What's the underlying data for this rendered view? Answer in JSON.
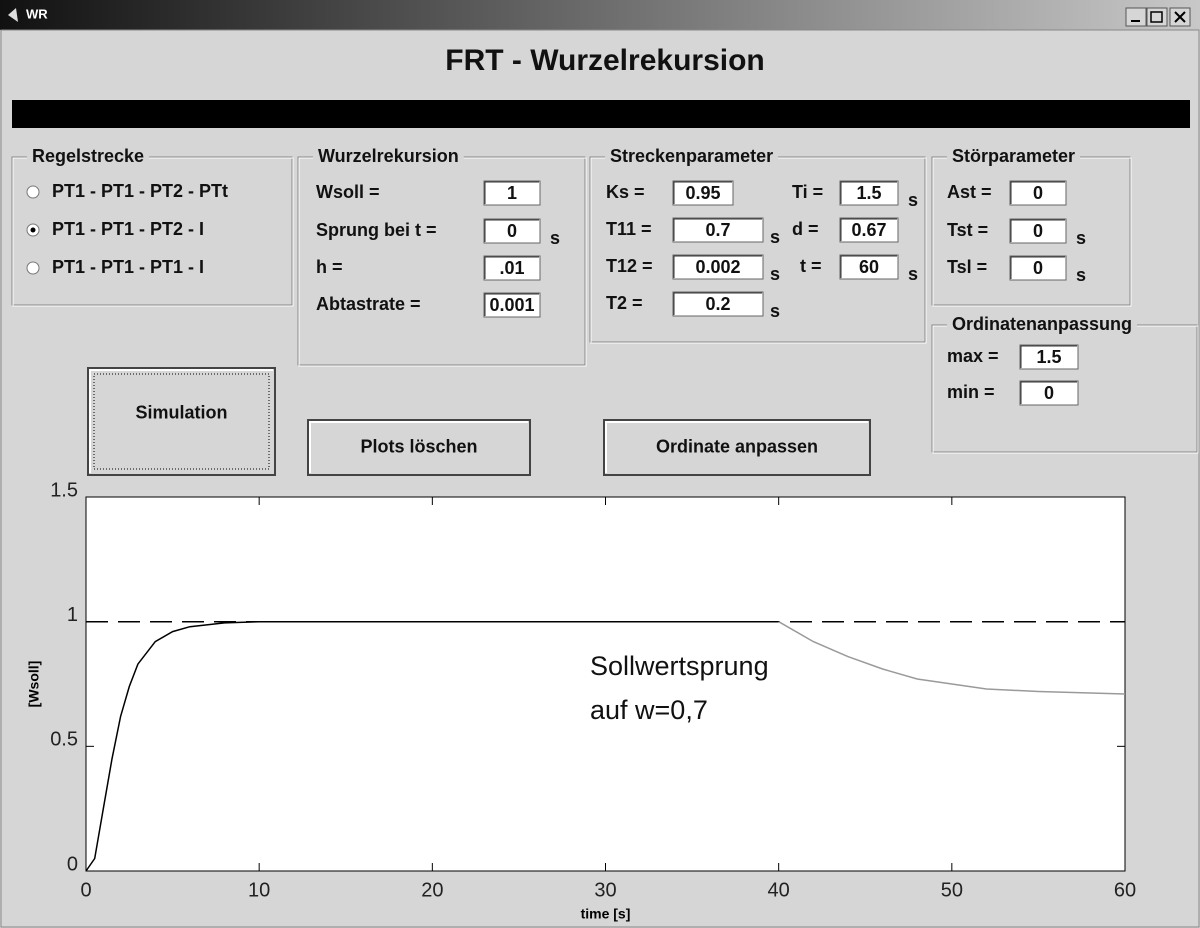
{
  "window": {
    "title": "WR"
  },
  "header": {
    "title": "FRT - Wurzelrekursion"
  },
  "regelstrecke": {
    "title": "Regelstrecke",
    "options": [
      "PT1 - PT1 - PT2 - PTt",
      "PT1 - PT1 - PT2 - I",
      "PT1 - PT1 - PT1 - I"
    ],
    "selected": 1
  },
  "wurzelrekursion": {
    "title": "Wurzelrekursion",
    "fields": [
      {
        "label": "Wsoll =",
        "value": "1"
      },
      {
        "label": "Sprung bei t =",
        "value": "0",
        "unit": "s"
      },
      {
        "label": "h =",
        "value": ".01"
      },
      {
        "label": "Abtastrate =",
        "value": "0.001"
      }
    ]
  },
  "streckenparameter": {
    "title": "Streckenparameter",
    "fields": [
      {
        "label": "Ks =",
        "value": "0.95"
      },
      {
        "label": "Ti =",
        "value": "1.5",
        "unit": "s"
      },
      {
        "label": "T11 =",
        "value": "0.7",
        "unit": "s"
      },
      {
        "label": "d =",
        "value": "0.67"
      },
      {
        "label": "T12 =",
        "value": "0.002",
        "unit": "s"
      },
      {
        "label": "t =",
        "value": "60",
        "unit": "s"
      },
      {
        "label": "T2 =",
        "value": "0.2",
        "unit": "s"
      }
    ]
  },
  "stoerparameter": {
    "title": "Störparameter",
    "fields": [
      {
        "label": "Ast =",
        "value": "0"
      },
      {
        "label": "Tst =",
        "value": "0",
        "unit": "s"
      },
      {
        "label": "Tsl =",
        "value": "0",
        "unit": "s"
      }
    ]
  },
  "ordinatenanpassung": {
    "title": "Ordinatenanpassung",
    "fields": [
      {
        "label": "max =",
        "value": "1.5"
      },
      {
        "label": "min =",
        "value": "0"
      }
    ]
  },
  "buttons": [
    "Simulation",
    "Plots löschen",
    "Ordinate anpassen"
  ],
  "plot": {
    "type": "line",
    "xlabel": "time [s]",
    "ylabel": "[Wsoll]",
    "xlim": [
      0,
      60
    ],
    "ylim": [
      0,
      1.5
    ],
    "xticks": [
      0,
      10,
      20,
      30,
      40,
      50,
      60
    ],
    "yticks": [
      0,
      0.5,
      1,
      1.5
    ],
    "grid": false,
    "annotation": [
      "Sollwertsprung",
      "auf w=0,7"
    ],
    "series": [
      {
        "color": "#000000",
        "dash": true,
        "x": [
          0,
          60
        ],
        "values": [
          1,
          1
        ]
      },
      {
        "color": "#000000",
        "dash": false,
        "x": [
          0,
          0.5,
          1,
          1.5,
          2,
          2.5,
          3,
          4,
          5,
          6,
          8,
          10,
          40
        ],
        "values": [
          0,
          0.05,
          0.25,
          0.45,
          0.62,
          0.74,
          0.83,
          0.92,
          0.96,
          0.98,
          0.995,
          1,
          1
        ]
      },
      {
        "color": "#9a9a9a",
        "dash": false,
        "x": [
          40,
          42,
          44,
          46,
          48,
          50,
          52,
          55,
          60
        ],
        "values": [
          1,
          0.92,
          0.86,
          0.81,
          0.77,
          0.75,
          0.73,
          0.72,
          0.71
        ]
      }
    ]
  }
}
